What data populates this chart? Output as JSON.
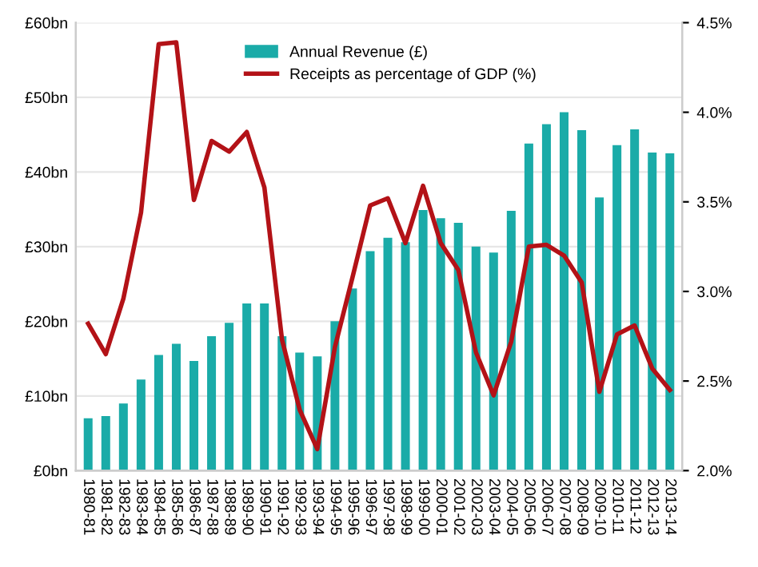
{
  "chart_data": {
    "type": "bar",
    "categories": [
      "1980-81",
      "1981-82",
      "1982-83",
      "1983-84",
      "1984-85",
      "1985-86",
      "1986-87",
      "1987-88",
      "1988-89",
      "1989-90",
      "1990-91",
      "1991-92",
      "1992-93",
      "1993-94",
      "1994-95",
      "1995-96",
      "1996-97",
      "1997-98",
      "1998-99",
      "1999-00",
      "2000-01",
      "2001-02",
      "2002-03",
      "2003-04",
      "2004-05",
      "2005-06",
      "2006-07",
      "2007-08",
      "2008-09",
      "2009-10",
      "2010-11",
      "2011-12",
      "2012-13",
      "2013-14"
    ],
    "series": [
      {
        "name": "Annual Revenue (£)",
        "color": "#1aaba8",
        "values": [
          7.0,
          7.3,
          9.0,
          12.2,
          15.5,
          17.0,
          14.7,
          18.0,
          19.8,
          22.4,
          22.4,
          18.0,
          15.8,
          15.3,
          20.0,
          24.4,
          29.4,
          31.2,
          30.6,
          34.9,
          33.8,
          33.2,
          30.0,
          29.2,
          34.8,
          43.8,
          46.4,
          48.0,
          45.6,
          36.6,
          43.6,
          45.7,
          42.6,
          42.5
        ]
      },
      {
        "name": "Receipts as percentage of GDP (%)",
        "type": "line",
        "axis": "y2",
        "color": "#b31217",
        "values": [
          2.82,
          2.65,
          2.96,
          3.44,
          4.38,
          4.39,
          3.51,
          3.84,
          3.78,
          3.89,
          3.58,
          2.73,
          2.34,
          2.12,
          2.69,
          3.08,
          3.48,
          3.52,
          3.27,
          3.59,
          3.27,
          3.12,
          2.66,
          2.42,
          2.72,
          3.25,
          3.26,
          3.2,
          3.05,
          2.44,
          2.76,
          2.81,
          2.57,
          2.45
        ]
      }
    ],
    "ylim": [
      0,
      60
    ],
    "yticks": [
      {
        "value": 0,
        "label": "£0bn"
      },
      {
        "value": 10,
        "label": "£10bn"
      },
      {
        "value": 20,
        "label": "£20bn"
      },
      {
        "value": 30,
        "label": "£30bn"
      },
      {
        "value": 40,
        "label": "£40bn"
      },
      {
        "value": 50,
        "label": "£50bn"
      },
      {
        "value": 60,
        "label": "£60bn"
      }
    ],
    "y2lim": [
      2.0,
      4.5
    ],
    "y2ticks": [
      {
        "value": 2.0,
        "label": "2.0%"
      },
      {
        "value": 2.5,
        "label": "2.5%"
      },
      {
        "value": 3.0,
        "label": "3.0%"
      },
      {
        "value": 3.5,
        "label": "3.5%"
      },
      {
        "value": 4.0,
        "label": "4.0%"
      },
      {
        "value": 4.5,
        "label": "4.5%"
      }
    ],
    "grid": "y",
    "legend": "top",
    "marker": "none",
    "line_style": "solid"
  }
}
